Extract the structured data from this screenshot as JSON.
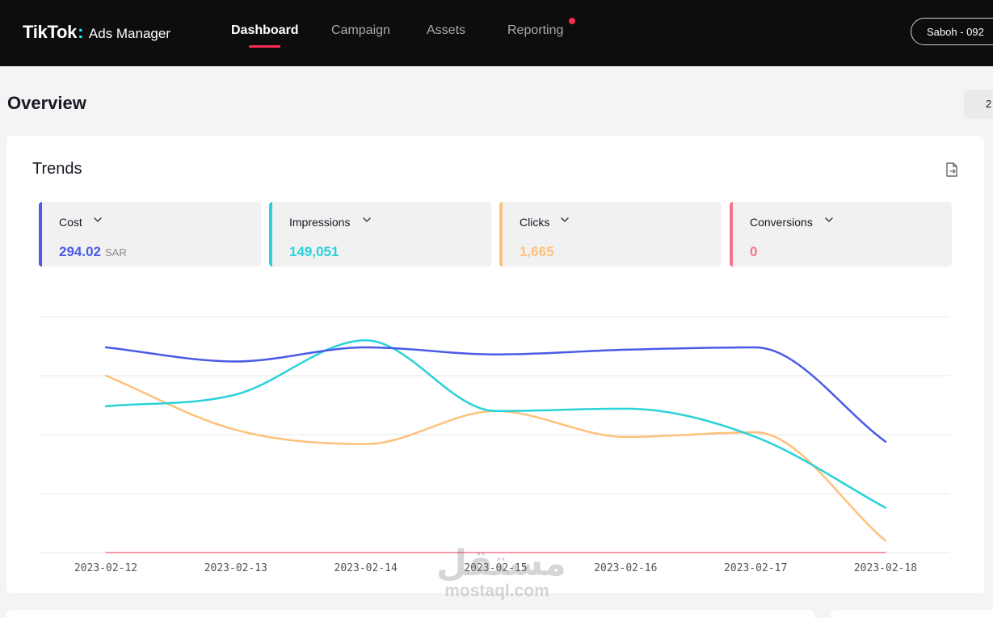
{
  "header": {
    "logo": {
      "brand": "TikTok",
      "colon": ":",
      "product": "Ads Manager"
    },
    "nav": [
      {
        "label": "Dashboard",
        "active": true
      },
      {
        "label": "Campaign",
        "active": false
      },
      {
        "label": "Assets",
        "active": false
      },
      {
        "label": "Reporting",
        "active": false,
        "notification": true
      }
    ],
    "account": "Saboh - 092"
  },
  "page": {
    "title": "Overview",
    "date_button": "2"
  },
  "trends": {
    "title": "Trends",
    "export_icon": "export-file-icon",
    "metrics": [
      {
        "label": "Cost",
        "value": "294.02",
        "unit": "SAR",
        "color": "#4a5be6"
      },
      {
        "label": "Impressions",
        "value": "149,051",
        "unit": "",
        "color": "#2ad2d9"
      },
      {
        "label": "Clicks",
        "value": "1,665",
        "unit": "",
        "color": "#ffc07a"
      },
      {
        "label": "Conversions",
        "value": "0",
        "unit": "",
        "color": "#f5738d"
      }
    ]
  },
  "chart_data": {
    "type": "line",
    "x": [
      "2023-02-12",
      "2023-02-13",
      "2023-02-14",
      "2023-02-15",
      "2023-02-16",
      "2023-02-17",
      "2023-02-18"
    ],
    "y_axis_labels": "none",
    "grid": true,
    "series": [
      {
        "name": "Cost",
        "color": "#4a5be6",
        "values": [
          0.87,
          0.81,
          0.87,
          0.84,
          0.86,
          0.87,
          0.47
        ]
      },
      {
        "name": "Impressions",
        "color": "#2ad2d9",
        "values": [
          0.62,
          0.67,
          0.9,
          0.6,
          0.61,
          0.49,
          0.19
        ]
      },
      {
        "name": "Clicks",
        "color": "#ffc07a",
        "values": [
          0.75,
          0.52,
          0.46,
          0.6,
          0.49,
          0.51,
          0.05
        ]
      },
      {
        "name": "Conversions",
        "color": "#f5738d",
        "values": [
          0,
          0,
          0,
          0,
          0,
          0,
          0
        ]
      }
    ]
  },
  "watermark": {
    "arabic": "مستقل",
    "latin": "mostaql.com"
  }
}
